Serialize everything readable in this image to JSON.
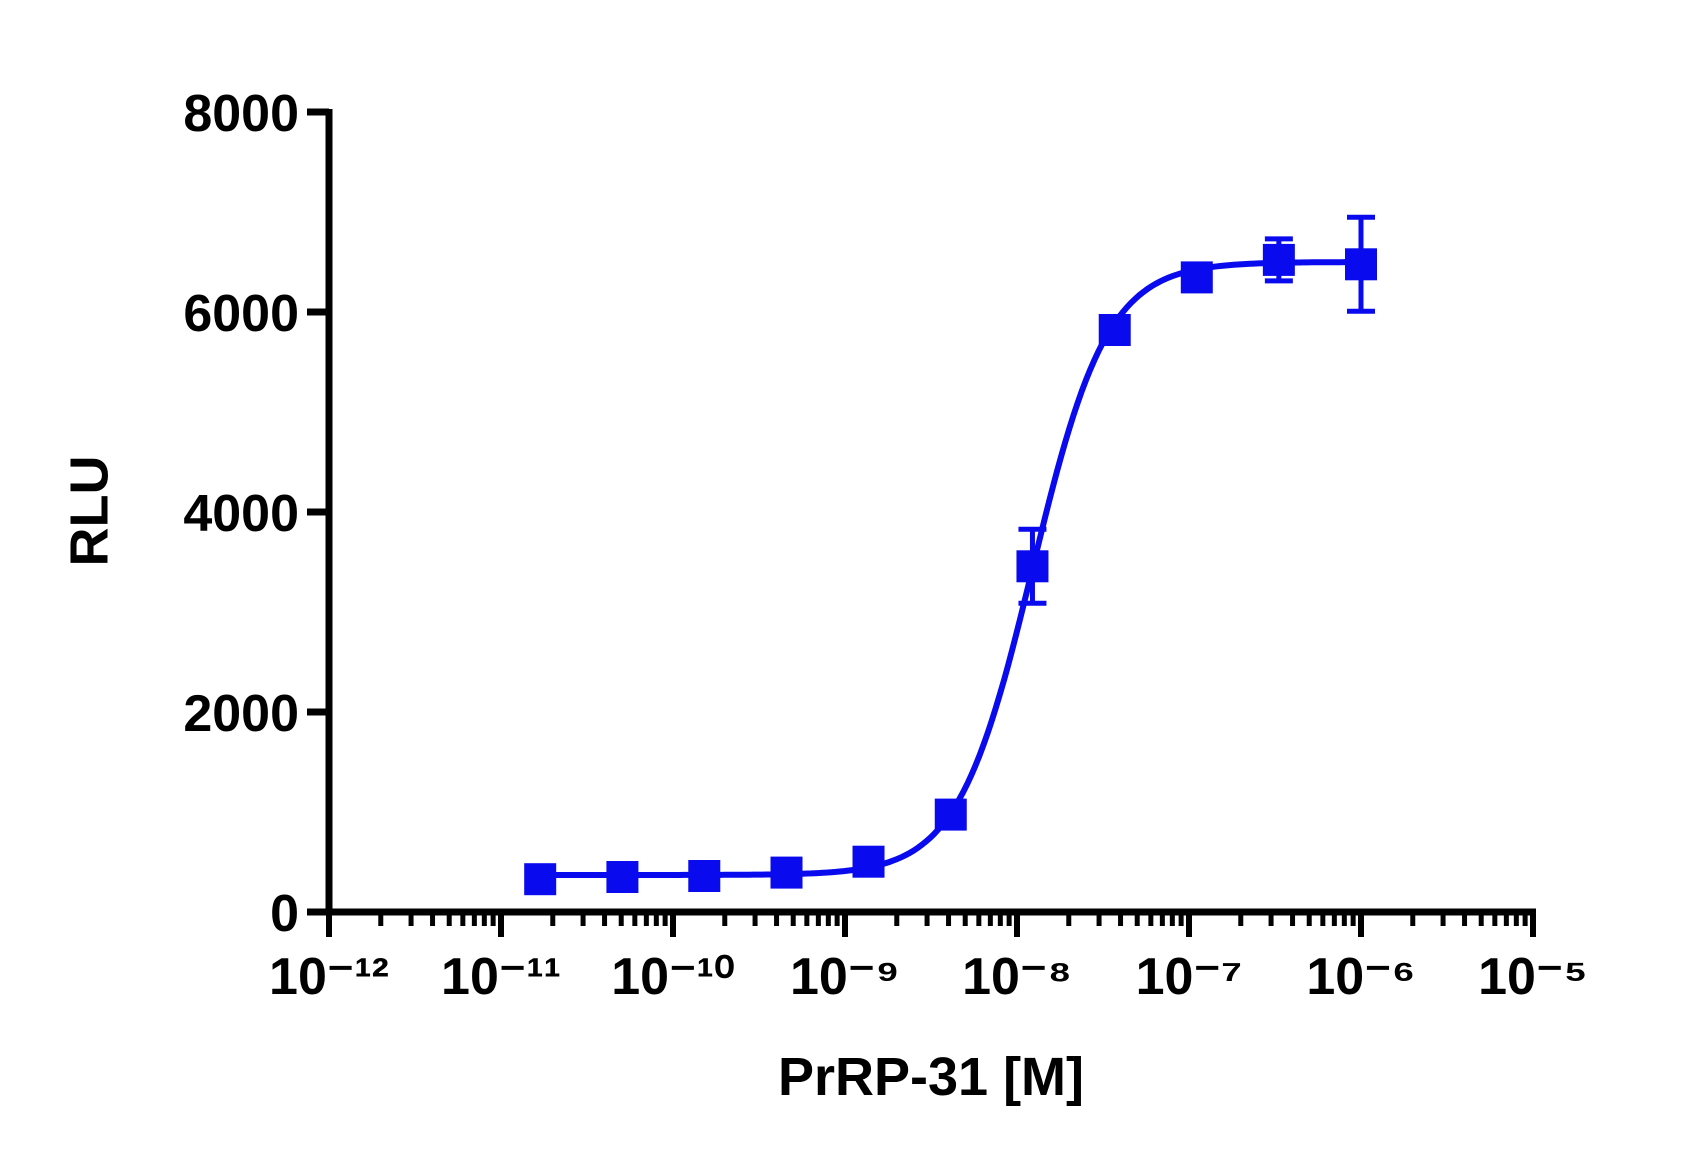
{
  "chart_data": {
    "type": "scatter",
    "x_label": "PrRP-31 [M]",
    "y_label": "RLU",
    "x_scale": "log",
    "xlim": [
      1e-12,
      1e-05
    ],
    "xticks": [
      {
        "value": 1e-12,
        "label": "10⁻¹²"
      },
      {
        "value": 1e-11,
        "label": "10⁻¹¹"
      },
      {
        "value": 1e-10,
        "label": "10⁻¹⁰"
      },
      {
        "value": 1e-09,
        "label": "10⁻⁹"
      },
      {
        "value": 1e-08,
        "label": "10⁻⁸"
      },
      {
        "value": 1e-07,
        "label": "10⁻⁷"
      },
      {
        "value": 1e-06,
        "label": "10⁻⁶"
      },
      {
        "value": 1e-05,
        "label": "10⁻⁵"
      }
    ],
    "ylim": [
      0,
      8000
    ],
    "yticks": [
      0,
      2000,
      4000,
      6000,
      8000
    ],
    "series": [
      {
        "color": "#0a0aee",
        "x": [
          1.69e-11,
          5.08e-11,
          1.52e-10,
          4.57e-10,
          1.37e-09,
          4.12e-09,
          1.23e-08,
          3.7e-08,
          1.11e-07,
          3.33e-07,
          1e-06
        ],
        "values": [
          328,
          350,
          360,
          394,
          503,
          974,
          3457,
          5820,
          6346,
          6521,
          6477
        ],
        "errors": [
          40,
          40,
          40,
          40,
          60,
          80,
          370,
          60,
          60,
          210,
          470
        ]
      }
    ],
    "fit": {
      "bottom": 370,
      "top": 6500,
      "logEC50": -7.91,
      "hill": 2
    }
  }
}
